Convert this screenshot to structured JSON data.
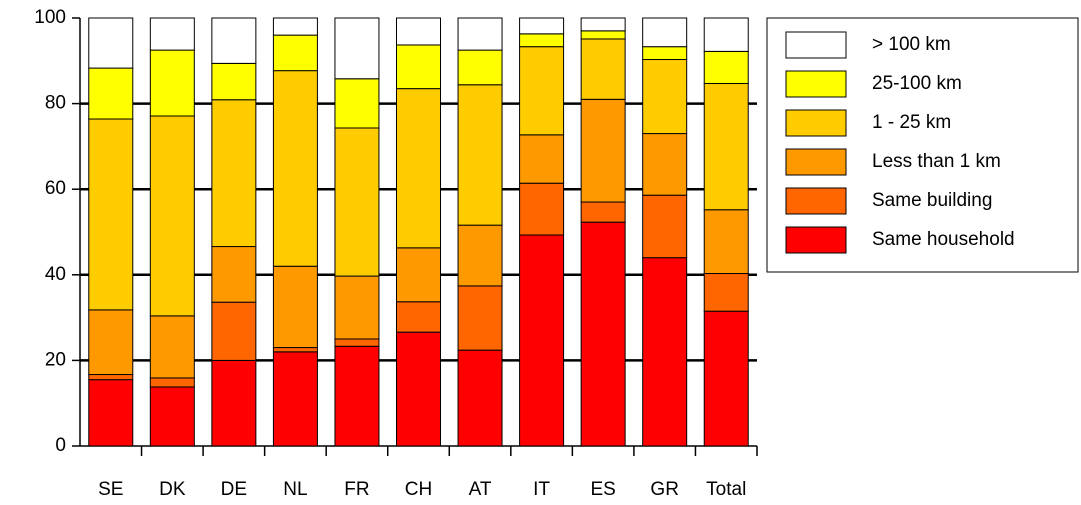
{
  "chart_data": {
    "type": "stacked_bar",
    "categories": [
      "SE",
      "DK",
      "DE",
      "NL",
      "FR",
      "CH",
      "AT",
      "IT",
      "ES",
      "GR",
      "Total"
    ],
    "series": [
      {
        "name": "Same household",
        "color": "#ff0000",
        "values": [
          15.5,
          13.8,
          20,
          22,
          23.3,
          26.6,
          22.4,
          49.3,
          52.3,
          44,
          31.5
        ]
      },
      {
        "name": "Same building",
        "color": "#ff6600",
        "values": [
          1.2,
          2.1,
          13.6,
          1,
          1.7,
          7.1,
          15,
          12.1,
          4.7,
          14.6,
          8.8
        ]
      },
      {
        "name": "Less than 1 km",
        "color": "#ff9900",
        "values": [
          15.1,
          14.5,
          13,
          19,
          14.7,
          12.6,
          14.2,
          11.3,
          24,
          14.4,
          14.9
        ]
      },
      {
        "name": "1 - 25 km",
        "color": "#ffcc00",
        "values": [
          44.6,
          46.7,
          34.3,
          45.7,
          34.6,
          37.2,
          32.8,
          20.6,
          14.1,
          17.3,
          29.5
        ]
      },
      {
        "name": "25-100 km",
        "color": "#ffff00",
        "values": [
          11.9,
          15.4,
          8.5,
          8.3,
          11.5,
          10.2,
          8.1,
          3,
          1.9,
          3,
          7.5
        ]
      },
      {
        "name": "> 100 km",
        "color": "#ffffff",
        "values": [
          11.7,
          7.5,
          10.6,
          4,
          14.2,
          6.3,
          7.5,
          3.7,
          3,
          6.7,
          7.8
        ]
      }
    ],
    "ylim": [
      0,
      100
    ],
    "yticks": [
      0,
      20,
      40,
      60,
      80,
      100
    ],
    "grid": true,
    "legend": "right"
  }
}
